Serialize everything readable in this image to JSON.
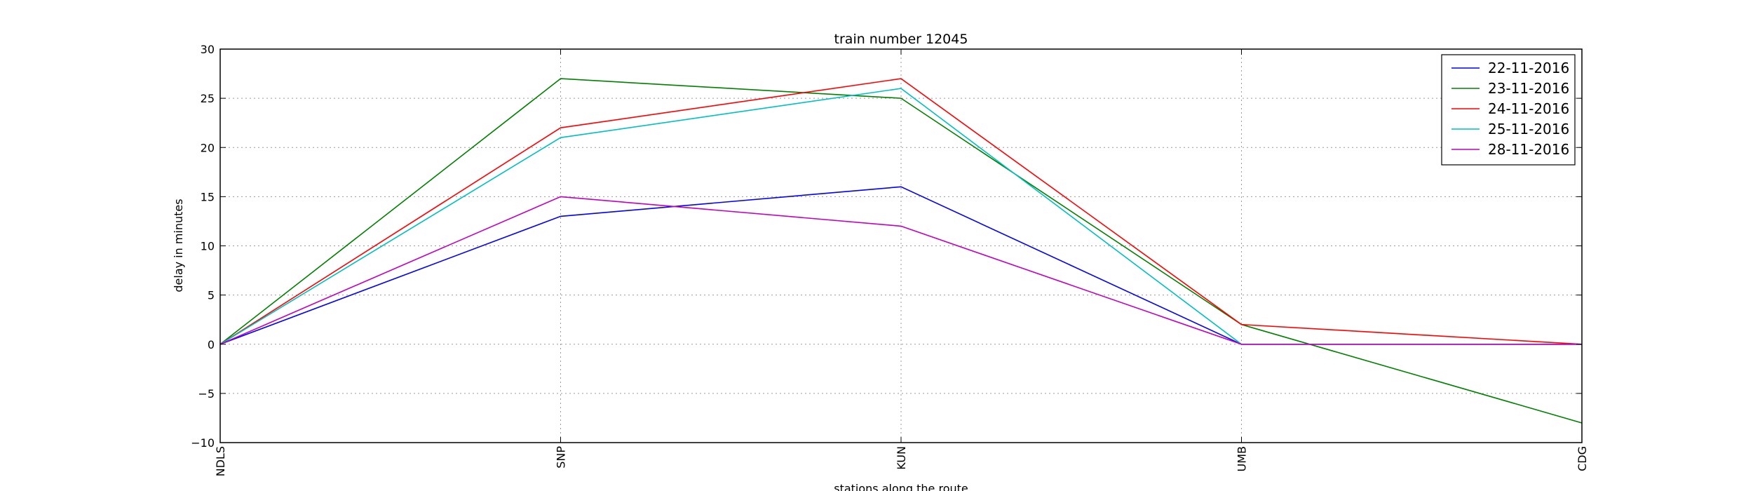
{
  "chart_data": {
    "type": "line",
    "title": "train number 12045",
    "xlabel": "stations along the route",
    "ylabel": "delay in minutes",
    "categories": [
      "NDLS",
      "SNP",
      "KUN",
      "UMB",
      "CDG"
    ],
    "ylim": [
      -10,
      30
    ],
    "yticks": [
      30,
      25,
      20,
      15,
      10,
      5,
      0,
      -5,
      -10
    ],
    "ytick_labels": [
      "30",
      "25",
      "20",
      "15",
      "10",
      "5",
      "0",
      "−5",
      "−10"
    ],
    "grid": true,
    "legend_position": "top-right",
    "series": [
      {
        "name": "22-11-2016",
        "color": "#0000ff",
        "values": [
          0,
          13,
          16,
          0,
          0
        ]
      },
      {
        "name": "23-11-2016",
        "color": "#008000",
        "values": [
          0,
          27,
          25,
          2,
          -8
        ]
      },
      {
        "name": "24-11-2016",
        "color": "#ff0000",
        "values": [
          0,
          22,
          27,
          2,
          0
        ]
      },
      {
        "name": "25-11-2016",
        "color": "#00bfbf",
        "values": [
          0,
          21,
          26,
          0,
          0
        ]
      },
      {
        "name": "28-11-2016",
        "color": "#bf00bf",
        "values": [
          0,
          15,
          12,
          0,
          0
        ]
      }
    ]
  }
}
